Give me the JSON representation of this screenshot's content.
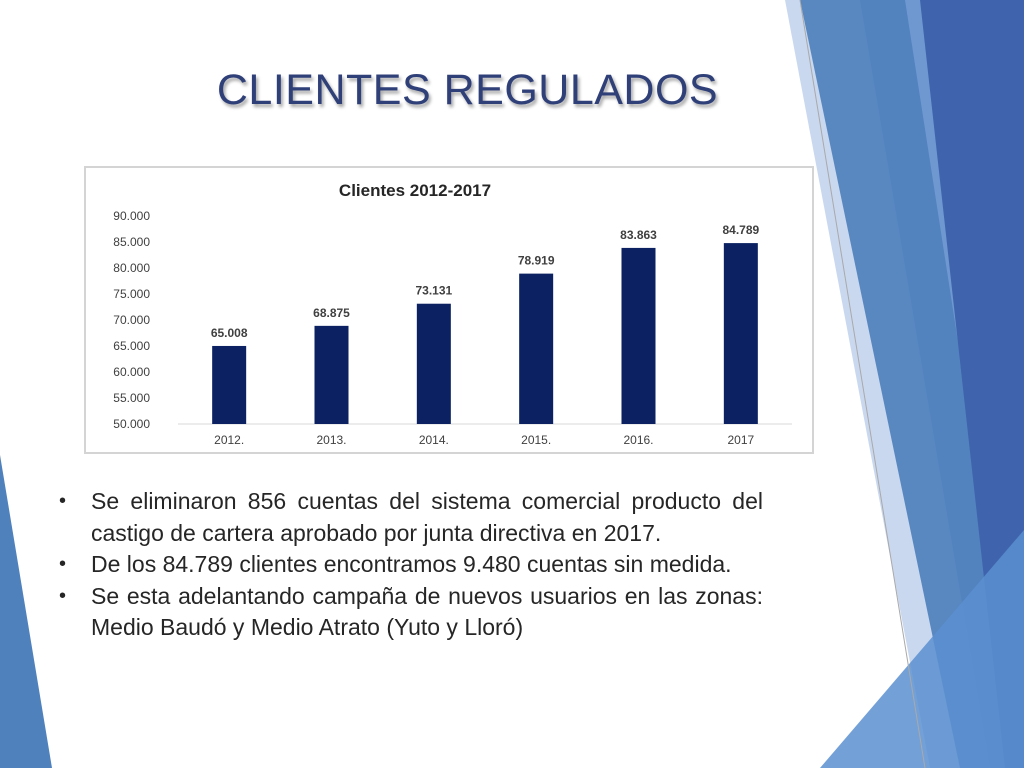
{
  "slide": {
    "title": "CLIENTES REGULADOS",
    "bullets": [
      "Se eliminaron 856 cuentas del sistema comercial producto del castigo de cartera aprobado por junta directiva en 2017.",
      "De los 84.789 clientes encontramos 9.480 cuentas sin medida.",
      "Se esta adelantando campaña de nuevos usuarios en las zonas: Medio Baudó y Medio Atrato (Yuto y Lloró)"
    ]
  },
  "colors": {
    "bar": "#0b2161",
    "title": "#2f3f78",
    "decor_blues": [
      "#4f81bd",
      "#5b8fd0",
      "#8fb3e2",
      "#c5d6ef",
      "#3f64ad"
    ]
  },
  "chart_data": {
    "type": "bar",
    "title": "Clientes 2012-2017",
    "categories": [
      "2012.",
      "2013.",
      "2014.",
      "2015.",
      "2016.",
      "2017"
    ],
    "values": [
      65008,
      68875,
      73131,
      78919,
      83863,
      84789
    ],
    "value_labels": [
      "65.008",
      "68.875",
      "73.131",
      "78.919",
      "83.863",
      "84.789"
    ],
    "ylim": [
      50000,
      90000
    ],
    "yticks": [
      50000,
      55000,
      60000,
      65000,
      70000,
      75000,
      80000,
      85000,
      90000
    ],
    "ytick_labels": [
      "50.000",
      "55.000",
      "60.000",
      "65.000",
      "70.000",
      "75.000",
      "80.000",
      "85.000",
      "90.000"
    ],
    "xlabel": "",
    "ylabel": "",
    "grid": false,
    "legend": "none"
  }
}
